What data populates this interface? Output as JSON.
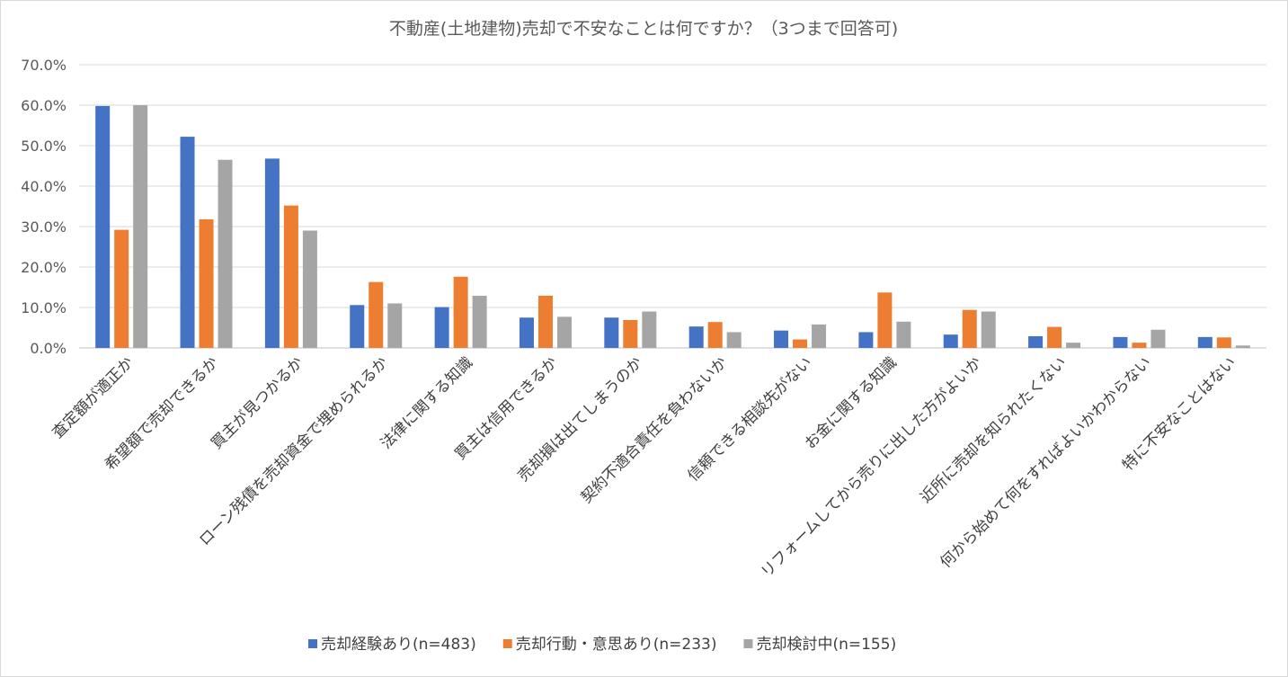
{
  "chart_data": {
    "type": "bar",
    "title": "不動産(土地建物)売却で不安なことは何ですか？（3つまで回答可)",
    "xlabel": "",
    "ylabel": "",
    "ylim": [
      0,
      70
    ],
    "y_ticks": [
      "0.0%",
      "10.0%",
      "20.0%",
      "30.0%",
      "40.0%",
      "50.0%",
      "60.0%",
      "70.0%"
    ],
    "grid": true,
    "legend_position": "bottom",
    "categories": [
      "査定額が適正か",
      "希望額で売却できるか",
      "買主が見つかるか",
      "ローン残債を売却資金で埋められるか",
      "法律に関する知識",
      "買主は信用できるか",
      "売却損は出てしまうのか",
      "契約不適合責任を負わないか",
      "信頼できる相談先がない",
      "お金に関する知識",
      "リフォームしてから売りに出した方がよいか",
      "近所に売却を知られたくない",
      "何から始めて何をすればよいかわからない",
      "特に不安なことはない"
    ],
    "series": [
      {
        "name": "売却経験あり(n=483)",
        "color": "#4472c4",
        "values": [
          59.8,
          52.2,
          46.8,
          10.6,
          10.1,
          7.5,
          7.5,
          5.3,
          4.3,
          3.9,
          3.3,
          2.9,
          2.7,
          2.7
        ]
      },
      {
        "name": "売却行動・意思あり(n=233)",
        "color": "#ed7d31",
        "values": [
          29.2,
          31.8,
          35.2,
          16.3,
          17.6,
          12.9,
          6.9,
          6.4,
          2.1,
          13.7,
          9.4,
          5.2,
          1.3,
          2.6
        ]
      },
      {
        "name": "売却検討中(n=155)",
        "color": "#a5a5a5",
        "values": [
          60.0,
          46.5,
          29.0,
          11.0,
          12.9,
          7.7,
          9.0,
          3.9,
          5.8,
          6.5,
          9.0,
          1.3,
          4.5,
          0.6
        ]
      }
    ]
  },
  "colors": {
    "grid": "#d9d9d9",
    "axis": "#bfbfbf"
  }
}
